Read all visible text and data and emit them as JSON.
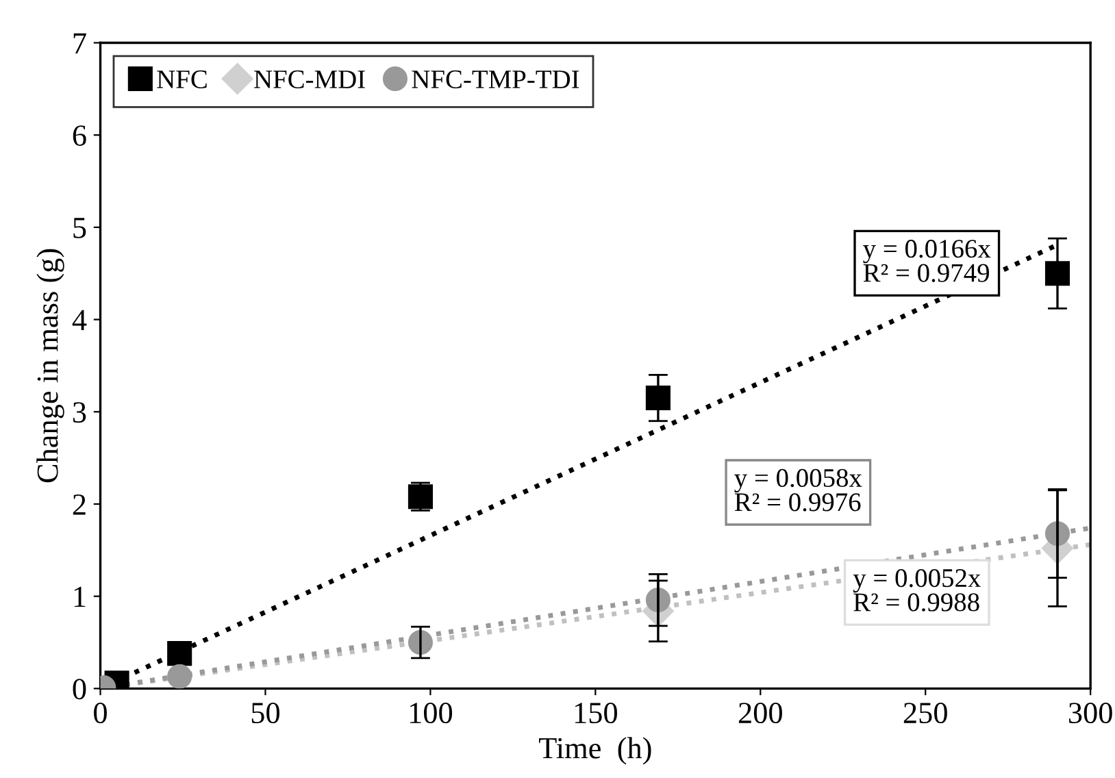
{
  "chart_data": {
    "type": "scatter",
    "xlabel": "Time  (h)",
    "ylabel": "Change in mass (g)",
    "xlim": [
      0,
      300
    ],
    "xticks": [
      0,
      50,
      100,
      150,
      200,
      250,
      300
    ],
    "ylim": [
      0,
      7
    ],
    "yticks": [
      0,
      1,
      2,
      3,
      4,
      5,
      6,
      7
    ],
    "grid": false,
    "legend": "top left",
    "series": [
      {
        "name": "NFC",
        "color": "#000000",
        "marker": "square",
        "x": [
          5,
          24,
          97,
          169,
          290
        ],
        "values": [
          0.06,
          0.38,
          2.08,
          3.15,
          4.5
        ],
        "errors": [
          null,
          null,
          0.15,
          0.25,
          0.38
        ]
      },
      {
        "name": "NFC-MDI",
        "color": "#d0d0d0",
        "marker": "diamond",
        "x": [
          169,
          290
        ],
        "values": [
          0.84,
          1.52
        ],
        "errors": [
          0.33,
          0.63
        ]
      },
      {
        "name": "NFC-TMP-TDI",
        "color": "#999999",
        "marker": "circle",
        "x": [
          1,
          24,
          97,
          169,
          290
        ],
        "values": [
          0.01,
          0.13,
          0.5,
          0.96,
          1.68
        ],
        "errors": [
          null,
          null,
          0.17,
          0.28,
          0.48
        ]
      },
      {
        "type": "line",
        "color": "#000000",
        "line_style": "dotted",
        "marker": "none",
        "x": [
          0,
          290
        ],
        "values": [
          0,
          4.81
        ]
      },
      {
        "type": "line",
        "color": "#c0c0c0",
        "line_style": "dotted",
        "marker": "none",
        "x": [
          0,
          300
        ],
        "values": [
          0,
          1.56
        ]
      },
      {
        "type": "line",
        "color": "#999999",
        "line_style": "dotted",
        "marker": "none",
        "x": [
          0,
          300
        ],
        "values": [
          0,
          1.74
        ]
      }
    ],
    "annotations": [
      "y = 0.0166x\nR² = 0.9749",
      "y = 0.0058x\nR² = 0.9976",
      "y = 0.0052x\nR² = 0.9988"
    ]
  }
}
